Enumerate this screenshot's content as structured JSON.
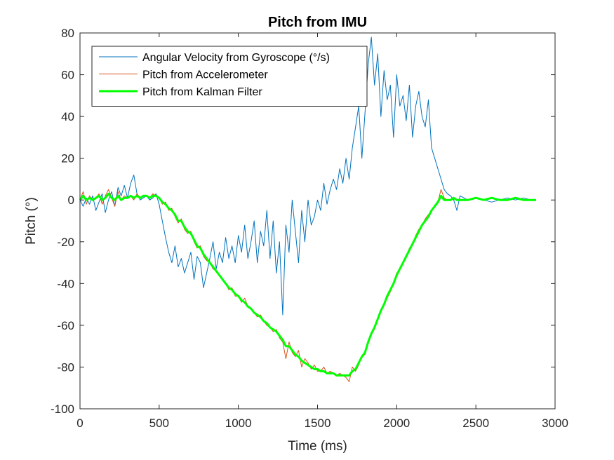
{
  "chart_data": {
    "type": "line",
    "title": "Pitch from IMU",
    "xlabel": "Time (ms)",
    "ylabel": "Pitch (°)",
    "xlim": [
      0,
      3000
    ],
    "ylim": [
      -100,
      80
    ],
    "xticks": [
      0,
      500,
      1000,
      1500,
      2000,
      2500,
      3000
    ],
    "yticks": [
      -100,
      -80,
      -60,
      -40,
      -20,
      0,
      20,
      40,
      60,
      80
    ],
    "grid": false,
    "legend_position": "top-left",
    "series": [
      {
        "name": "Angular Velocity from Gyroscope (°/s)",
        "color": "#0072BD",
        "line_width": "thin",
        "x": [
          0,
          20,
          40,
          60,
          80,
          100,
          120,
          140,
          160,
          180,
          200,
          220,
          240,
          260,
          280,
          300,
          320,
          340,
          360,
          380,
          400,
          420,
          440,
          460,
          480,
          500,
          520,
          540,
          560,
          580,
          600,
          620,
          640,
          660,
          680,
          700,
          720,
          740,
          760,
          780,
          800,
          820,
          840,
          860,
          880,
          900,
          920,
          940,
          960,
          980,
          1000,
          1020,
          1040,
          1060,
          1080,
          1100,
          1120,
          1140,
          1160,
          1180,
          1200,
          1220,
          1240,
          1260,
          1280,
          1300,
          1320,
          1340,
          1360,
          1380,
          1400,
          1420,
          1440,
          1460,
          1480,
          1500,
          1520,
          1540,
          1560,
          1580,
          1600,
          1620,
          1640,
          1660,
          1680,
          1700,
          1720,
          1740,
          1760,
          1780,
          1800,
          1820,
          1840,
          1860,
          1880,
          1900,
          1920,
          1940,
          1960,
          1980,
          2000,
          2020,
          2040,
          2060,
          2080,
          2100,
          2120,
          2140,
          2160,
          2180,
          2200,
          2220,
          2240,
          2260,
          2280,
          2300,
          2320,
          2340,
          2360,
          2380,
          2400,
          2450,
          2500,
          2550,
          2600,
          2650,
          2700,
          2750,
          2800,
          2850,
          2880
        ],
        "values": [
          0,
          -3,
          1,
          -2,
          2,
          -5,
          -1,
          3,
          -6,
          0,
          4,
          -3,
          6,
          2,
          7,
          1,
          8,
          12,
          3,
          0,
          1,
          2,
          0,
          1,
          3,
          -2,
          -10,
          -18,
          -25,
          -30,
          -22,
          -32,
          -28,
          -35,
          -30,
          -25,
          -38,
          -27,
          -30,
          -42,
          -35,
          -28,
          -20,
          -33,
          -25,
          -30,
          -18,
          -28,
          -22,
          -30,
          -17,
          -25,
          -12,
          -28,
          -20,
          -10,
          -30,
          -15,
          -22,
          -5,
          -28,
          -10,
          -35,
          -20,
          -55,
          -12,
          -25,
          0,
          -15,
          -30,
          -5,
          -20,
          0,
          -12,
          -8,
          0,
          -5,
          8,
          -2,
          5,
          10,
          5,
          15,
          8,
          20,
          10,
          25,
          35,
          45,
          20,
          42,
          65,
          78,
          55,
          70,
          40,
          62,
          48,
          55,
          30,
          60,
          45,
          50,
          38,
          55,
          30,
          45,
          52,
          40,
          35,
          48,
          25,
          20,
          15,
          10,
          5,
          3,
          2,
          0,
          -5,
          2,
          0,
          1,
          0,
          -1,
          0,
          1,
          0,
          1,
          0,
          0
        ]
      },
      {
        "name": "Pitch from Accelerometer",
        "color": "#D95319",
        "line_width": "thin",
        "x": [
          0,
          20,
          40,
          60,
          80,
          100,
          120,
          140,
          160,
          180,
          200,
          220,
          240,
          260,
          280,
          300,
          320,
          340,
          360,
          380,
          400,
          420,
          440,
          460,
          480,
          500,
          520,
          540,
          560,
          580,
          600,
          620,
          640,
          660,
          680,
          700,
          720,
          740,
          760,
          780,
          800,
          820,
          840,
          860,
          880,
          900,
          920,
          940,
          960,
          980,
          1000,
          1020,
          1040,
          1060,
          1080,
          1100,
          1120,
          1140,
          1160,
          1180,
          1200,
          1220,
          1240,
          1260,
          1280,
          1300,
          1320,
          1340,
          1360,
          1380,
          1400,
          1420,
          1440,
          1460,
          1480,
          1500,
          1520,
          1540,
          1560,
          1580,
          1600,
          1620,
          1640,
          1660,
          1680,
          1700,
          1720,
          1740,
          1760,
          1780,
          1800,
          1820,
          1840,
          1860,
          1880,
          1900,
          1920,
          1940,
          1960,
          1980,
          2000,
          2020,
          2040,
          2060,
          2080,
          2100,
          2120,
          2140,
          2160,
          2180,
          2200,
          2220,
          2240,
          2260,
          2280,
          2300,
          2320,
          2340,
          2360,
          2380,
          2400,
          2450,
          2500,
          2550,
          2600,
          2650,
          2700,
          2750,
          2800,
          2850,
          2880
        ],
        "values": [
          0,
          4,
          -2,
          2,
          0,
          1,
          3,
          -2,
          2,
          5,
          1,
          -3,
          4,
          0,
          2,
          1,
          2,
          0,
          3,
          1,
          2,
          2,
          1,
          3,
          2,
          1,
          -2,
          -1,
          -5,
          -4,
          -8,
          -11,
          -9,
          -14,
          -16,
          -15,
          -20,
          -23,
          -22,
          -27,
          -29,
          -30,
          -33,
          -34,
          -36,
          -38,
          -40,
          -43,
          -42,
          -46,
          -46,
          -49,
          -47,
          -51,
          -52,
          -54,
          -56,
          -55,
          -58,
          -60,
          -61,
          -63,
          -62,
          -66,
          -68,
          -76,
          -68,
          -73,
          -75,
          -72,
          -80,
          -76,
          -78,
          -81,
          -79,
          -82,
          -82,
          -80,
          -83,
          -82,
          -83,
          -84,
          -83,
          -84,
          -85,
          -87,
          -80,
          -82,
          -79,
          -75,
          -74,
          -68,
          -64,
          -62,
          -57,
          -53,
          -50,
          -47,
          -44,
          -40,
          -35,
          -33,
          -30,
          -27,
          -23,
          -21,
          -17,
          -14,
          -12,
          -9,
          -7,
          -5,
          -3,
          -1,
          5,
          1,
          0,
          0,
          1,
          0,
          0,
          0,
          1,
          0,
          1,
          0,
          0,
          1,
          0,
          0,
          0
        ]
      },
      {
        "name": "Pitch from Kalman Filter",
        "color": "#00FF00",
        "line_width": "thick",
        "x": [
          0,
          20,
          40,
          60,
          80,
          100,
          120,
          140,
          160,
          180,
          200,
          220,
          240,
          260,
          280,
          300,
          320,
          340,
          360,
          380,
          400,
          420,
          440,
          460,
          480,
          500,
          520,
          540,
          560,
          580,
          600,
          620,
          640,
          660,
          680,
          700,
          720,
          740,
          760,
          780,
          800,
          820,
          840,
          860,
          880,
          900,
          920,
          940,
          960,
          980,
          1000,
          1020,
          1040,
          1060,
          1080,
          1100,
          1120,
          1140,
          1160,
          1180,
          1200,
          1220,
          1240,
          1260,
          1280,
          1300,
          1320,
          1340,
          1360,
          1380,
          1400,
          1420,
          1440,
          1460,
          1480,
          1500,
          1520,
          1540,
          1560,
          1580,
          1600,
          1620,
          1640,
          1660,
          1680,
          1700,
          1720,
          1740,
          1760,
          1780,
          1800,
          1820,
          1840,
          1860,
          1880,
          1900,
          1920,
          1940,
          1960,
          1980,
          2000,
          2020,
          2040,
          2060,
          2080,
          2100,
          2120,
          2140,
          2160,
          2180,
          2200,
          2220,
          2240,
          2260,
          2280,
          2300,
          2320,
          2340,
          2360,
          2380,
          2400,
          2450,
          2500,
          2550,
          2600,
          2650,
          2700,
          2750,
          2800,
          2850,
          2880
        ],
        "values": [
          0,
          2,
          0,
          1,
          0,
          1,
          2,
          0,
          1,
          3,
          1,
          0,
          2,
          0,
          1,
          1,
          2,
          1,
          2,
          1,
          2,
          2,
          1,
          2,
          2,
          1,
          -1,
          -2,
          -4,
          -5,
          -7,
          -10,
          -10,
          -13,
          -15,
          -16,
          -19,
          -22,
          -23,
          -26,
          -28,
          -30,
          -32,
          -34,
          -36,
          -38,
          -40,
          -42,
          -43,
          -45,
          -46,
          -48,
          -49,
          -51,
          -52,
          -54,
          -55,
          -56,
          -58,
          -59,
          -61,
          -62,
          -63,
          -65,
          -67,
          -70,
          -70,
          -72,
          -74,
          -75,
          -77,
          -78,
          -79,
          -80,
          -81,
          -81,
          -82,
          -82,
          -83,
          -83,
          -83,
          -84,
          -84,
          -84,
          -84,
          -84,
          -82,
          -81,
          -78,
          -75,
          -73,
          -68,
          -64,
          -61,
          -57,
          -53,
          -50,
          -46,
          -43,
          -40,
          -36,
          -33,
          -30,
          -27,
          -24,
          -21,
          -18,
          -15,
          -12,
          -10,
          -8,
          -5,
          -3,
          -1,
          2,
          0,
          0,
          0,
          1,
          0,
          0,
          0,
          1,
          0,
          1,
          0,
          0,
          1,
          0,
          0,
          0
        ]
      }
    ]
  }
}
